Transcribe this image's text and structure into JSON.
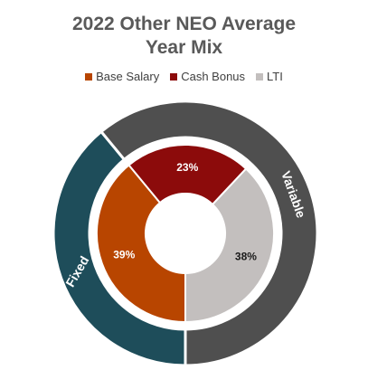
{
  "chart_data": {
    "type": "donut",
    "title": "2022 Other NEO Average Year Mix",
    "categories": [
      "Base Salary",
      "Cash Bonus",
      "LTI"
    ],
    "values": [
      39,
      23,
      38
    ],
    "value_labels": [
      "39%",
      "23%",
      "38%"
    ],
    "colors": [
      "#b84500",
      "#8c0b0b",
      "#c3bfbe"
    ],
    "label_colors": [
      "#ffffff",
      "#ffffff",
      "#1a1a1a"
    ],
    "outer_ring": {
      "categories": [
        "Fixed",
        "Variable"
      ],
      "values": [
        39,
        61
      ],
      "colors": [
        "#1e4d5a",
        "#4f4f4f"
      ]
    }
  }
}
